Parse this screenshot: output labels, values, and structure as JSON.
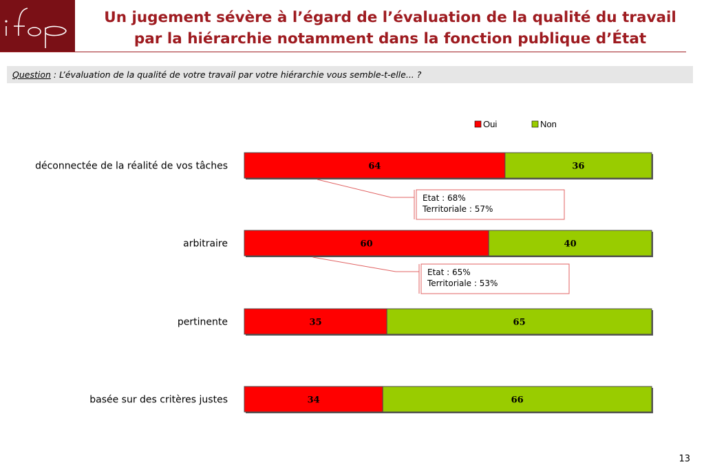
{
  "header": {
    "logo_text": "ifop",
    "title_line1": "Un jugement sévère à l’égard de l’évaluation de la qualité du travail",
    "title_line2": "par la hiérarchie notamment dans la fonction publique d’État"
  },
  "question": {
    "label": "Question",
    "text": " : L’évaluation de la qualité de votre travail par votre hiérarchie vous semble-t-elle... ?"
  },
  "chart_data": {
    "type": "bar",
    "orientation": "horizontal",
    "stacked": true,
    "categories": [
      "déconnectée de la réalité de vos tâches",
      "arbitraire",
      "pertinente",
      "basée sur des critères justes"
    ],
    "series": [
      {
        "name": "Oui",
        "color": "#ff0000",
        "values": [
          64,
          60,
          35,
          34
        ]
      },
      {
        "name": "Non",
        "color": "#99cc00",
        "values": [
          36,
          40,
          65,
          66
        ]
      }
    ],
    "xlim": [
      0,
      100
    ],
    "legend_position": "top-right",
    "callouts": [
      {
        "category_index": 0,
        "line1": "Etat : 68%",
        "line2": "Territoriale : 57%"
      },
      {
        "category_index": 1,
        "line1": "Etat : 65%",
        "line2": "Territoriale : 53%"
      }
    ]
  },
  "footer": {
    "page_number": "13"
  }
}
